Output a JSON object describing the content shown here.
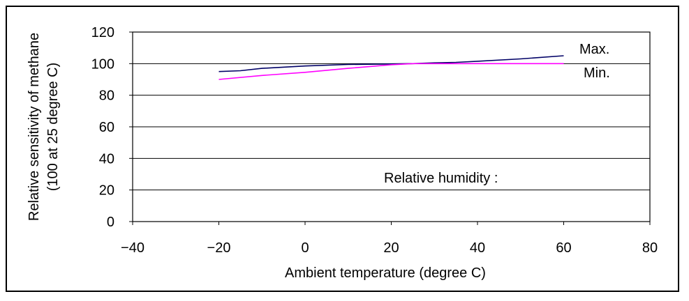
{
  "chart_data": {
    "type": "line",
    "title": "",
    "xlabel": "Ambient temperature (degree C)",
    "ylabel": "Relative sensitivity of methane",
    "ylabel_line2": "(100 at 25 degree C)",
    "xlim": [
      -40,
      80
    ],
    "ylim": [
      0,
      120
    ],
    "xticks": [
      -40,
      -20,
      0,
      20,
      40,
      60,
      80
    ],
    "xtick_labels": [
      "−40",
      "−20",
      "0",
      "20",
      "40",
      "60",
      "80"
    ],
    "yticks": [
      0,
      20,
      40,
      60,
      80,
      100,
      120
    ],
    "ytick_labels": [
      "0",
      "20",
      "40",
      "60",
      "80",
      "100",
      "120"
    ],
    "grid": "horizontal",
    "series": [
      {
        "name": "Max.",
        "color": "#000066",
        "x": [
          -20,
          -15,
          -10,
          0,
          10,
          20,
          25,
          30,
          35,
          40,
          50,
          60
        ],
        "y": [
          95,
          95.5,
          97,
          98.5,
          99.5,
          99.8,
          100,
          100.5,
          100.8,
          101.5,
          103,
          105
        ]
      },
      {
        "name": "Min.",
        "color": "#ff00ff",
        "x": [
          -20,
          -10,
          0,
          10,
          20,
          25,
          30,
          40,
          50,
          60
        ],
        "y": [
          90,
          92.5,
          94.5,
          97,
          99.3,
          100,
          100,
          100,
          100,
          100
        ]
      }
    ],
    "annotations": [
      "Relative humidity :"
    ]
  }
}
